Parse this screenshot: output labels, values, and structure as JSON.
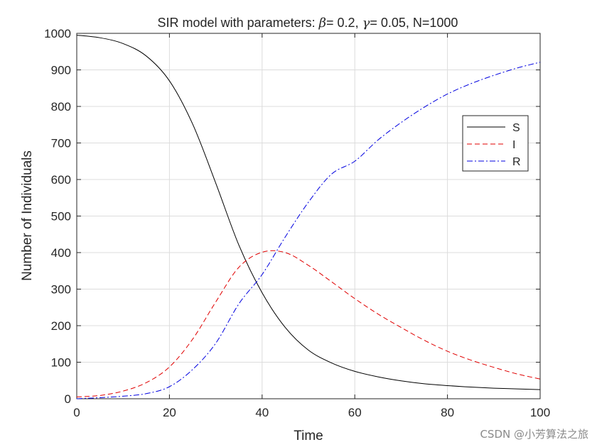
{
  "chart_data": {
    "type": "line",
    "title_prefix": "SIR model with parameters: ",
    "title_beta_symbol": "β",
    "title_beta_text": "= 0.2, ",
    "title_gamma_symbol": "γ",
    "title_gamma_text": "= 0.05, N=1000",
    "xlabel": "Time",
    "ylabel": "Number of Individuals",
    "xlim": [
      0,
      100
    ],
    "ylim": [
      0,
      1000
    ],
    "xticks": [
      0,
      20,
      40,
      60,
      80,
      100
    ],
    "yticks": [
      0,
      100,
      200,
      300,
      400,
      500,
      600,
      700,
      800,
      900,
      1000
    ],
    "grid": true,
    "legend_position": "top-right",
    "x": [
      0,
      5,
      10,
      15,
      20,
      25,
      30,
      35,
      40,
      45,
      50,
      55,
      60,
      65,
      70,
      75,
      80,
      85,
      90,
      95,
      100
    ],
    "series": [
      {
        "name": "S",
        "color": "#000000",
        "style": "solid",
        "values": [
          995,
          988,
          972,
          938,
          870,
          752,
          590,
          420,
          290,
          195,
          133,
          98,
          75,
          60,
          49,
          41,
          36,
          32,
          29,
          27,
          25
        ]
      },
      {
        "name": "I",
        "color": "#e00000",
        "style": "dashed",
        "values": [
          5,
          9,
          21,
          44,
          87,
          163,
          265,
          360,
          401,
          400,
          365,
          320,
          274,
          232,
          195,
          160,
          130,
          106,
          86,
          68,
          54
        ]
      },
      {
        "name": "R",
        "color": "#0000e0",
        "style": "dashdot",
        "values": [
          0,
          3,
          7,
          14,
          33,
          80,
          152,
          260,
          340,
          443,
          538,
          615,
          650,
          708,
          756,
          798,
          834,
          862,
          885,
          905,
          921
        ]
      }
    ]
  },
  "watermark": "CSDN @小芳算法之旅"
}
